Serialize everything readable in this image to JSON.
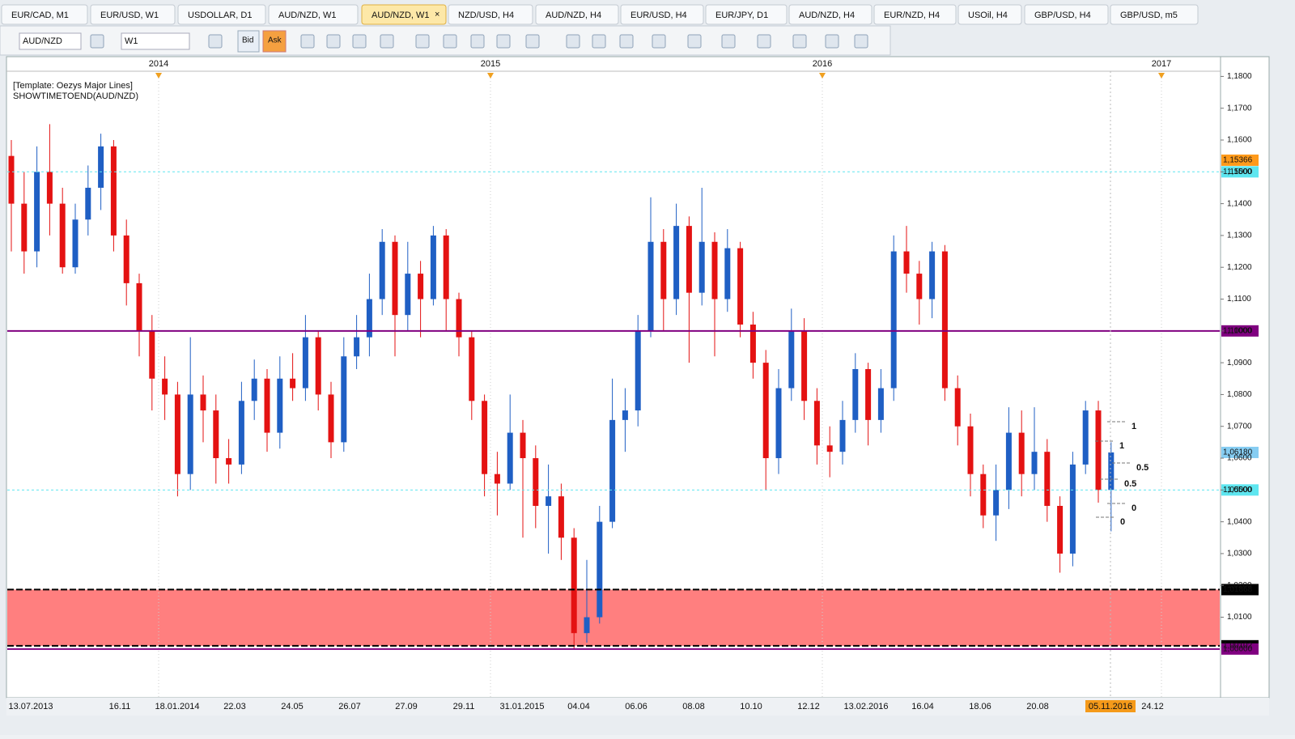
{
  "tabs": [
    {
      "label": "EUR/CAD, M1"
    },
    {
      "label": "EUR/USD, W1"
    },
    {
      "label": "USDOLLAR, D1"
    },
    {
      "label": "AUD/NZD, W1"
    },
    {
      "label": "AUD/NZD, W1",
      "active": true
    },
    {
      "label": "NZD/USD, H4"
    },
    {
      "label": "AUD/NZD, H4"
    },
    {
      "label": "EUR/USD, H4"
    },
    {
      "label": "EUR/JPY, D1"
    },
    {
      "label": "AUD/NZD, H4"
    },
    {
      "label": "EUR/NZD, H4"
    },
    {
      "label": "USOil, H4"
    },
    {
      "label": "GBP/USD, H4"
    },
    {
      "label": "GBP/USD, m5"
    }
  ],
  "toolbar": {
    "symbol": "AUD/NZD",
    "timeframe": "W1",
    "bid": "Bid",
    "ask": "Ask"
  },
  "chart_data": {
    "type": "candlestick",
    "annotations": [
      "[Template: Oezys Major Lines]",
      "SHOWTIMETOEND(AUD/NZD)"
    ],
    "top_axis_labels": [
      "2014",
      "2015",
      "2016",
      "2017"
    ],
    "x_labels": [
      "13.07.2013",
      "16.11",
      "18.01.2014",
      "22.03",
      "24.05",
      "26.07",
      "27.09",
      "29.11",
      "31.01.2015",
      "04.04",
      "06.06",
      "08.08",
      "10.10",
      "12.12",
      "13.02.2016",
      "16.04",
      "18.06",
      "20.08",
      "24.12"
    ],
    "cursor_date": "05.11.2016",
    "up_color": "#1f5fc4",
    "down_color": "#e41212",
    "open": [
      1.155,
      1.14,
      1.125,
      1.15,
      1.14,
      1.12,
      1.135,
      1.145,
      1.158,
      1.13,
      1.115,
      1.1,
      1.085,
      1.08,
      1.055,
      1.08,
      1.075,
      1.06,
      1.058,
      1.078,
      1.085,
      1.068,
      1.085,
      1.082,
      1.098,
      1.08,
      1.065,
      1.092,
      1.098,
      1.11,
      1.128,
      1.105,
      1.118,
      1.11,
      1.13,
      1.11,
      1.098,
      1.078,
      1.055,
      1.052,
      1.068,
      1.06,
      1.045,
      1.048,
      1.035,
      1.005,
      1.01,
      1.04,
      1.072,
      1.075,
      1.1,
      1.128,
      1.11,
      1.133,
      1.112,
      1.128,
      1.11,
      1.126,
      1.102,
      1.09,
      1.06,
      1.082,
      1.1,
      1.078,
      1.064,
      1.062,
      1.072,
      1.088,
      1.072,
      1.082,
      1.125,
      1.118,
      1.11,
      1.125,
      1.082,
      1.07,
      1.055,
      1.042,
      1.05,
      1.068,
      1.055,
      1.062,
      1.045,
      1.03,
      1.058,
      1.075,
      1.05
    ],
    "high": [
      1.16,
      1.15,
      1.158,
      1.165,
      1.145,
      1.14,
      1.152,
      1.162,
      1.16,
      1.135,
      1.118,
      1.105,
      1.092,
      1.084,
      1.098,
      1.086,
      1.08,
      1.066,
      1.084,
      1.091,
      1.088,
      1.092,
      1.093,
      1.105,
      1.1,
      1.084,
      1.098,
      1.105,
      1.118,
      1.132,
      1.13,
      1.128,
      1.122,
      1.133,
      1.132,
      1.112,
      1.1,
      1.08,
      1.062,
      1.08,
      1.072,
      1.064,
      1.058,
      1.052,
      1.038,
      1.028,
      1.045,
      1.085,
      1.082,
      1.105,
      1.142,
      1.132,
      1.14,
      1.136,
      1.145,
      1.131,
      1.132,
      1.128,
      1.106,
      1.094,
      1.088,
      1.107,
      1.104,
      1.082,
      1.07,
      1.078,
      1.093,
      1.09,
      1.088,
      1.13,
      1.133,
      1.122,
      1.128,
      1.127,
      1.086,
      1.074,
      1.058,
      1.058,
      1.076,
      1.075,
      1.076,
      1.066,
      1.048,
      1.062,
      1.078,
      1.078,
      1.065
    ],
    "low": [
      1.125,
      1.118,
      1.12,
      1.13,
      1.118,
      1.118,
      1.13,
      1.138,
      1.125,
      1.108,
      1.092,
      1.075,
      1.072,
      1.048,
      1.05,
      1.065,
      1.052,
      1.052,
      1.055,
      1.072,
      1.062,
      1.063,
      1.078,
      1.078,
      1.075,
      1.06,
      1.062,
      1.088,
      1.092,
      1.105,
      1.092,
      1.1,
      1.098,
      1.108,
      1.1,
      1.092,
      1.072,
      1.048,
      1.042,
      1.05,
      1.035,
      1.038,
      1.03,
      1.028,
      1.0,
      1.002,
      1.008,
      1.038,
      1.062,
      1.07,
      1.098,
      1.1,
      1.105,
      1.09,
      1.108,
      1.092,
      1.106,
      1.098,
      1.085,
      1.05,
      1.055,
      1.078,
      1.072,
      1.058,
      1.054,
      1.058,
      1.068,
      1.064,
      1.068,
      1.078,
      1.112,
      1.102,
      1.104,
      1.078,
      1.064,
      1.048,
      1.038,
      1.034,
      1.044,
      1.048,
      1.05,
      1.04,
      1.024,
      1.026,
      1.055,
      1.046,
      1.037
    ],
    "close": [
      1.14,
      1.125,
      1.15,
      1.14,
      1.12,
      1.135,
      1.145,
      1.158,
      1.13,
      1.115,
      1.1,
      1.085,
      1.08,
      1.055,
      1.08,
      1.075,
      1.06,
      1.058,
      1.078,
      1.085,
      1.068,
      1.085,
      1.082,
      1.098,
      1.08,
      1.065,
      1.092,
      1.098,
      1.11,
      1.128,
      1.105,
      1.118,
      1.11,
      1.13,
      1.11,
      1.098,
      1.078,
      1.055,
      1.052,
      1.068,
      1.06,
      1.045,
      1.048,
      1.035,
      1.005,
      1.01,
      1.04,
      1.072,
      1.075,
      1.1,
      1.128,
      1.11,
      1.133,
      1.112,
      1.128,
      1.11,
      1.126,
      1.102,
      1.09,
      1.06,
      1.082,
      1.1,
      1.078,
      1.064,
      1.062,
      1.072,
      1.088,
      1.072,
      1.082,
      1.125,
      1.118,
      1.11,
      1.125,
      1.082,
      1.07,
      1.055,
      1.042,
      1.05,
      1.068,
      1.055,
      1.062,
      1.045,
      1.03,
      1.058,
      1.075,
      1.05,
      1.0618
    ],
    "ylim": [
      0.9936,
      1.1857
    ],
    "yticks": [
      {
        "value": 1.18,
        "label": "1,1800"
      },
      {
        "value": 1.17,
        "label": "1,1700"
      },
      {
        "value": 1.16,
        "label": "1,1600"
      },
      {
        "value": 1.15,
        "label": "1,1500"
      },
      {
        "value": 1.14,
        "label": "1,1400"
      },
      {
        "value": 1.13,
        "label": "1,1300"
      },
      {
        "value": 1.12,
        "label": "1,1200"
      },
      {
        "value": 1.11,
        "label": "1,1100"
      },
      {
        "value": 1.1,
        "label": "1,1000"
      },
      {
        "value": 1.09,
        "label": "1,0900"
      },
      {
        "value": 1.08,
        "label": "1,0800"
      },
      {
        "value": 1.07,
        "label": "1,0700"
      },
      {
        "value": 1.06,
        "label": "1,0600"
      },
      {
        "value": 1.05,
        "label": "1,0500"
      },
      {
        "value": 1.04,
        "label": "1,0400"
      },
      {
        "value": 1.03,
        "label": "1,0300"
      },
      {
        "value": 1.02,
        "label": "1,0200"
      },
      {
        "value": 1.01,
        "label": "1,0100"
      }
    ],
    "levels": [
      {
        "value": 1.15366,
        "label": "1,15366",
        "color": "#ff9a1a",
        "style": "none"
      },
      {
        "value": 1.15,
        "label": "1,15000",
        "color": "#5ee6f0",
        "style": "dashed"
      },
      {
        "value": 1.1,
        "label": "1,10000",
        "color": "#800080",
        "style": "solid"
      },
      {
        "value": 1.0618,
        "label": "1,06180",
        "color": "#86cdf2",
        "style": "none"
      },
      {
        "value": 1.05,
        "label": "1,05000",
        "color": "#5ee6f0",
        "style": "dashed"
      },
      {
        "value": 1.01868,
        "label": "1,01868",
        "color": "#000000",
        "style": "dashed"
      },
      {
        "value": 1.00102,
        "label": "1,00102",
        "color": "#000000",
        "style": "dashed"
      },
      {
        "value": 1.0,
        "label": "1,00000",
        "color": "#800080",
        "style": "solid"
      }
    ],
    "zone": {
      "color": "#ff7f7f"
    },
    "fib_labels": [
      "1",
      "1",
      "0.5",
      "0.5",
      "0",
      "0"
    ]
  }
}
